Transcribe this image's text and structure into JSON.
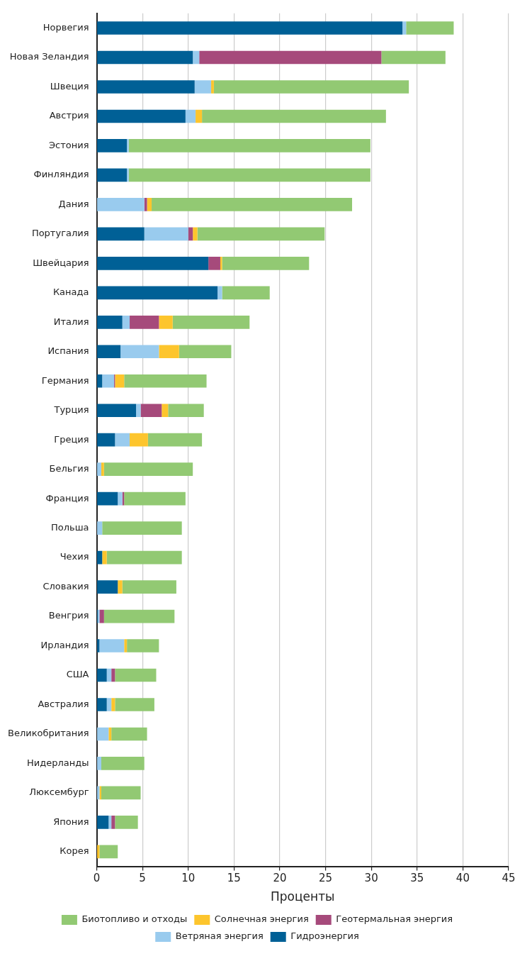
{
  "chart_data": {
    "type": "bar",
    "orientation": "horizontal",
    "stacked": true,
    "xlabel": "Проценты",
    "categories": [
      "Норвегия",
      "Новая Зеландия",
      "Швеция",
      "Австрия",
      "Эстония",
      "Финляндия",
      "Дания",
      "Португалия",
      "Швейцария",
      "Канада",
      "Италия",
      "Испания",
      "Германия",
      "Турция",
      "Греция",
      "Бельгия",
      "Франция",
      "Польша",
      "Чехия",
      "Словакия",
      "Венгрия",
      "Ирландия",
      "США",
      "Австралия",
      "Великобритания",
      "Нидерланды",
      "Люксембург",
      "Япония",
      "Корея"
    ],
    "series": [
      {
        "name": "Гидроэнергия",
        "color": "#006096",
        "values": [
          33.4,
          10.5,
          10.7,
          9.7,
          3.3,
          3.3,
          0,
          5.2,
          12.2,
          13.2,
          2.8,
          2.6,
          0.6,
          4.3,
          2.0,
          0,
          2.3,
          0,
          0.6,
          2.3,
          0.1,
          0.3,
          1.1,
          1.1,
          0,
          0,
          0,
          1.3,
          0
        ]
      },
      {
        "name": "Ветряная энергия",
        "color": "#99cbee",
        "values": [
          0.4,
          0.7,
          1.8,
          1.1,
          0.2,
          0.2,
          5.2,
          4.8,
          0,
          0.5,
          0.8,
          4.2,
          1.3,
          0.5,
          1.6,
          0.5,
          0.5,
          0.6,
          0,
          0,
          0.2,
          2.7,
          0.5,
          0.5,
          1.3,
          0.5,
          0.3,
          0.3,
          0
        ]
      },
      {
        "name": "Геотермальная энергия",
        "color": "#a64a7b",
        "values": [
          0,
          19.9,
          0,
          0,
          0,
          0,
          0.3,
          0.5,
          1.3,
          0,
          3.2,
          0,
          0.1,
          2.3,
          0,
          0,
          0.2,
          0,
          0,
          0,
          0.5,
          0,
          0.4,
          0,
          0,
          0,
          0,
          0.4,
          0
        ]
      },
      {
        "name": "Солнечная энергия",
        "color": "#fdc52d",
        "values": [
          0,
          0,
          0.3,
          0.7,
          0,
          0,
          0.5,
          0.5,
          0.2,
          0,
          1.5,
          2.2,
          1.0,
          0.7,
          2.0,
          0.3,
          0,
          0,
          0.5,
          0.5,
          0,
          0.3,
          0,
          0.4,
          0.3,
          0,
          0.2,
          0,
          0.3
        ]
      },
      {
        "name": "Биотопливо и отходы",
        "color": "#92c973",
        "values": [
          5.2,
          7.0,
          21.3,
          20.1,
          26.4,
          26.4,
          21.9,
          13.9,
          9.5,
          5.2,
          8.4,
          5.7,
          9.0,
          3.9,
          5.9,
          9.7,
          6.7,
          8.7,
          8.2,
          5.9,
          7.7,
          3.5,
          4.5,
          4.3,
          3.9,
          4.7,
          4.3,
          2.5,
          2.0
        ]
      }
    ],
    "xlim": [
      0,
      45
    ],
    "xticks": [
      0,
      5,
      10,
      15,
      20,
      25,
      30,
      35,
      40,
      45
    ],
    "grid": "x",
    "legend": "bottom"
  }
}
